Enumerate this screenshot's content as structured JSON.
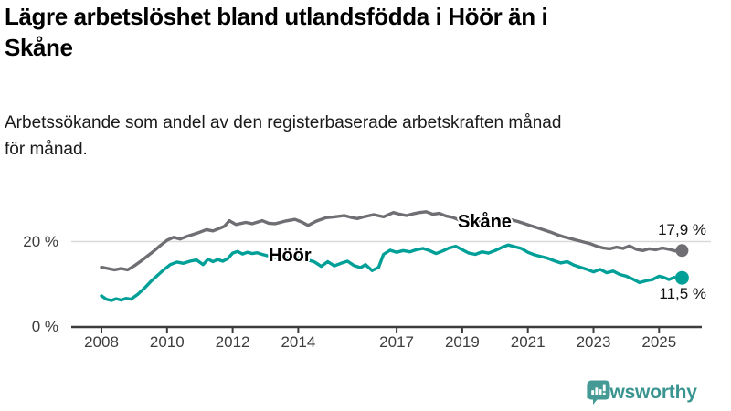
{
  "title": "Lägre arbetslöshet bland utlandsfödda i Höör än i Skåne",
  "title_lines": [
    "Lägre arbetslöshet bland utlandsfödda i Höör än i",
    "Skåne"
  ],
  "subtitle": "Arbetssökande som andel av den registerbaserade arbetskraften månad för månad.",
  "subtitle_lines": [
    "Arbetssökande som andel av den registerbaserade arbetskraften månad",
    "för månad."
  ],
  "colors": {
    "skane": "#6e6e73",
    "hoor": "#00a098",
    "gridline": "#d9d9d9",
    "axis": "#3c3c3c",
    "tick_text": "#3d3d3d",
    "logo": "#3a948f"
  },
  "logo": {
    "text": "Newsworthy"
  },
  "chart_data": {
    "type": "line",
    "title": "Lägre arbetslöshet bland utlandsfödda i Höör än i Skåne",
    "xlabel": "",
    "ylabel": "",
    "unit": "%",
    "grid": "single horizontal gridline at 20 %",
    "legend_position": "inline labels on lines",
    "x_range": [
      2008,
      2025.7
    ],
    "ylim": [
      0,
      30
    ],
    "x_ticks": [
      2008,
      2010,
      2012,
      2014,
      2017,
      2019,
      2021,
      2023,
      2025
    ],
    "y_ticks": [
      0,
      20
    ],
    "y_tick_labels": [
      "0 %",
      "20 %"
    ],
    "series": [
      {
        "name": "Skåne",
        "color": "#6e6e73",
        "end_label": "17,9 %",
        "end_value": 17.9,
        "points": [
          [
            2008.0,
            14.0
          ],
          [
            2008.2,
            13.7
          ],
          [
            2008.4,
            13.4
          ],
          [
            2008.6,
            13.7
          ],
          [
            2008.8,
            13.4
          ],
          [
            2009.0,
            14.3
          ],
          [
            2009.2,
            15.4
          ],
          [
            2009.4,
            16.6
          ],
          [
            2009.6,
            17.8
          ],
          [
            2009.8,
            19.1
          ],
          [
            2010.0,
            20.3
          ],
          [
            2010.2,
            21.0
          ],
          [
            2010.4,
            20.6
          ],
          [
            2010.6,
            21.2
          ],
          [
            2010.8,
            21.7
          ],
          [
            2011.0,
            22.2
          ],
          [
            2011.2,
            22.8
          ],
          [
            2011.4,
            22.5
          ],
          [
            2011.6,
            23.1
          ],
          [
            2011.75,
            23.6
          ],
          [
            2011.9,
            24.9
          ],
          [
            2012.1,
            24.0
          ],
          [
            2012.4,
            24.5
          ],
          [
            2012.6,
            24.2
          ],
          [
            2012.9,
            24.9
          ],
          [
            2013.1,
            24.3
          ],
          [
            2013.3,
            24.2
          ],
          [
            2013.6,
            24.8
          ],
          [
            2013.9,
            25.2
          ],
          [
            2014.1,
            24.6
          ],
          [
            2014.3,
            23.8
          ],
          [
            2014.55,
            24.8
          ],
          [
            2014.85,
            25.6
          ],
          [
            2015.1,
            25.8
          ],
          [
            2015.4,
            26.1
          ],
          [
            2015.6,
            25.7
          ],
          [
            2015.8,
            25.4
          ],
          [
            2016.0,
            25.8
          ],
          [
            2016.3,
            26.3
          ],
          [
            2016.6,
            25.8
          ],
          [
            2016.9,
            26.8
          ],
          [
            2017.1,
            26.4
          ],
          [
            2017.3,
            26.1
          ],
          [
            2017.5,
            26.5
          ],
          [
            2017.7,
            26.8
          ],
          [
            2017.9,
            27.0
          ],
          [
            2018.1,
            26.4
          ],
          [
            2018.3,
            26.6
          ],
          [
            2018.5,
            26.0
          ],
          [
            2018.7,
            25.7
          ],
          [
            2018.9,
            25.1
          ],
          [
            2019.1,
            25.3
          ],
          [
            2019.3,
            24.9
          ],
          [
            2019.5,
            24.7
          ],
          [
            2019.7,
            24.9
          ],
          [
            2019.9,
            24.6
          ],
          [
            2020.1,
            25.0
          ],
          [
            2020.3,
            25.4
          ],
          [
            2020.5,
            25.1
          ],
          [
            2020.7,
            24.7
          ],
          [
            2020.9,
            24.2
          ],
          [
            2021.1,
            23.7
          ],
          [
            2021.3,
            23.2
          ],
          [
            2021.5,
            22.7
          ],
          [
            2021.7,
            22.2
          ],
          [
            2021.9,
            21.6
          ],
          [
            2022.1,
            21.1
          ],
          [
            2022.3,
            20.7
          ],
          [
            2022.5,
            20.3
          ],
          [
            2022.7,
            19.9
          ],
          [
            2022.9,
            19.5
          ],
          [
            2023.1,
            18.9
          ],
          [
            2023.3,
            18.5
          ],
          [
            2023.5,
            18.3
          ],
          [
            2023.7,
            18.7
          ],
          [
            2023.9,
            18.4
          ],
          [
            2024.1,
            19.0
          ],
          [
            2024.3,
            18.2
          ],
          [
            2024.5,
            17.9
          ],
          [
            2024.7,
            18.3
          ],
          [
            2024.9,
            18.1
          ],
          [
            2025.1,
            18.5
          ],
          [
            2025.3,
            18.2
          ],
          [
            2025.5,
            17.8
          ],
          [
            2025.7,
            17.9
          ]
        ]
      },
      {
        "name": "Höör",
        "color": "#00a098",
        "end_label": "11,5 %",
        "end_value": 11.5,
        "points": [
          [
            2008.0,
            7.3
          ],
          [
            2008.15,
            6.5
          ],
          [
            2008.3,
            6.2
          ],
          [
            2008.45,
            6.6
          ],
          [
            2008.6,
            6.3
          ],
          [
            2008.75,
            6.7
          ],
          [
            2008.9,
            6.5
          ],
          [
            2009.1,
            7.6
          ],
          [
            2009.3,
            9.0
          ],
          [
            2009.5,
            10.6
          ],
          [
            2009.7,
            12.0
          ],
          [
            2009.9,
            13.4
          ],
          [
            2010.1,
            14.6
          ],
          [
            2010.3,
            15.2
          ],
          [
            2010.5,
            14.9
          ],
          [
            2010.7,
            15.4
          ],
          [
            2010.9,
            15.7
          ],
          [
            2011.1,
            14.6
          ],
          [
            2011.25,
            15.9
          ],
          [
            2011.4,
            15.3
          ],
          [
            2011.55,
            15.8
          ],
          [
            2011.7,
            15.4
          ],
          [
            2011.85,
            16.0
          ],
          [
            2012.0,
            17.3
          ],
          [
            2012.15,
            17.7
          ],
          [
            2012.3,
            17.1
          ],
          [
            2012.45,
            17.5
          ],
          [
            2012.6,
            17.2
          ],
          [
            2012.75,
            17.4
          ],
          [
            2012.9,
            17.0
          ],
          [
            2013.1,
            16.6
          ],
          [
            2013.3,
            16.3
          ],
          [
            2013.5,
            16.6
          ],
          [
            2013.7,
            16.1
          ],
          [
            2013.9,
            16.4
          ],
          [
            2014.1,
            16.0
          ],
          [
            2014.3,
            15.7
          ],
          [
            2014.5,
            15.2
          ],
          [
            2014.7,
            14.2
          ],
          [
            2014.9,
            15.3
          ],
          [
            2015.1,
            14.3
          ],
          [
            2015.3,
            14.9
          ],
          [
            2015.5,
            15.4
          ],
          [
            2015.7,
            14.4
          ],
          [
            2015.9,
            13.9
          ],
          [
            2016.05,
            14.6
          ],
          [
            2016.25,
            13.2
          ],
          [
            2016.45,
            14.0
          ],
          [
            2016.6,
            17.0
          ],
          [
            2016.8,
            18.0
          ],
          [
            2017.0,
            17.5
          ],
          [
            2017.2,
            17.9
          ],
          [
            2017.4,
            17.6
          ],
          [
            2017.6,
            18.1
          ],
          [
            2017.8,
            18.4
          ],
          [
            2018.0,
            17.9
          ],
          [
            2018.2,
            17.2
          ],
          [
            2018.4,
            17.8
          ],
          [
            2018.6,
            18.5
          ],
          [
            2018.8,
            18.9
          ],
          [
            2019.0,
            18.1
          ],
          [
            2019.2,
            17.3
          ],
          [
            2019.4,
            17.0
          ],
          [
            2019.6,
            17.6
          ],
          [
            2019.8,
            17.3
          ],
          [
            2020.0,
            17.9
          ],
          [
            2020.2,
            18.6
          ],
          [
            2020.4,
            19.2
          ],
          [
            2020.6,
            18.8
          ],
          [
            2020.8,
            18.4
          ],
          [
            2021.0,
            17.5
          ],
          [
            2021.2,
            16.9
          ],
          [
            2021.4,
            16.5
          ],
          [
            2021.6,
            16.1
          ],
          [
            2021.8,
            15.5
          ],
          [
            2022.0,
            15.0
          ],
          [
            2022.2,
            15.3
          ],
          [
            2022.4,
            14.5
          ],
          [
            2022.6,
            14.0
          ],
          [
            2022.8,
            13.5
          ],
          [
            2023.0,
            12.9
          ],
          [
            2023.2,
            13.5
          ],
          [
            2023.4,
            12.7
          ],
          [
            2023.6,
            13.1
          ],
          [
            2023.8,
            12.3
          ],
          [
            2024.0,
            11.9
          ],
          [
            2024.2,
            11.2
          ],
          [
            2024.4,
            10.4
          ],
          [
            2024.6,
            10.8
          ],
          [
            2024.8,
            11.1
          ],
          [
            2025.0,
            11.9
          ],
          [
            2025.15,
            11.6
          ],
          [
            2025.3,
            11.1
          ],
          [
            2025.45,
            11.6
          ],
          [
            2025.7,
            11.5
          ]
        ]
      }
    ]
  }
}
